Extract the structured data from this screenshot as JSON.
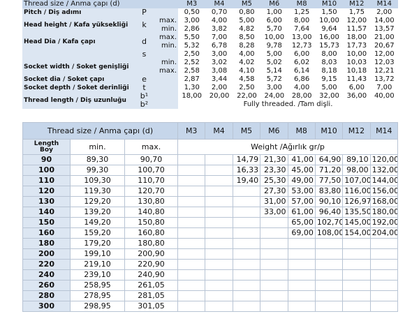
{
  "top": {
    "title": "Thread size / Anma çapı (d)",
    "sizes": [
      "M3",
      "M4",
      "M5",
      "M6",
      "M8",
      "M10",
      "M12",
      "M14"
    ],
    "groups": [
      {
        "label": "Pitch / Diş adımı",
        "symbol": "P",
        "lines": [
          {
            "values": [
              "0,50",
              "0,70",
              "0,80",
              "1,00",
              "1,25",
              "1,50",
              "1,75",
              "2,00"
            ]
          }
        ]
      },
      {
        "label": "Head height / Kafa yüksekliği",
        "symbol": "k",
        "lines": [
          {
            "limit": "max.",
            "values": [
              "3,00",
              "4,00",
              "5,00",
              "6,00",
              "8,00",
              "10,00",
              "12,00",
              "14,00"
            ]
          },
          {
            "limit": "min.",
            "values": [
              "2,86",
              "3,82",
              "4,82",
              "5,70",
              "7,64",
              "9,64",
              "11,57",
              "13,57"
            ]
          }
        ]
      },
      {
        "label": "Head Dia / Kafa çapı",
        "symbol": "d",
        "lines": [
          {
            "limit": "max.",
            "values": [
              "5,50",
              "7,00",
              "8,50",
              "10,00",
              "13,00",
              "16,00",
              "18,00",
              "21,00"
            ]
          },
          {
            "limit": "min.",
            "values": [
              "5,32",
              "6,78",
              "8,28",
              "9,78",
              "12,73",
              "15,73",
              "17,73",
              "20,67"
            ]
          }
        ]
      },
      {
        "symbol": "s",
        "lines": [
          {
            "values": [
              "2,50",
              "3,00",
              "4,00",
              "5,00",
              "6,00",
              "8,00",
              "10,00",
              "12,00"
            ]
          }
        ]
      },
      {
        "label": "Socket width / Soket genişliği",
        "lines": [
          {
            "limit": "min.",
            "values": [
              "2,52",
              "3,02",
              "4,02",
              "5,02",
              "6,02",
              "8,03",
              "10,03",
              "12,03"
            ]
          },
          {
            "limit": "max.",
            "values": [
              "2,58",
              "3,08",
              "4,10",
              "5,14",
              "6,14",
              "8,18",
              "10,18",
              "12,21"
            ]
          }
        ]
      },
      {
        "label": "Socket dia / Soket çapı",
        "symbol": "e",
        "lines": [
          {
            "values": [
              "2,87",
              "3,44",
              "4,58",
              "5,72",
              "6,86",
              "9,15",
              "11,43",
              "13,72"
            ]
          }
        ]
      },
      {
        "label": "Socket depth / Soket derinliği",
        "symbol": "t",
        "lines": [
          {
            "values": [
              "1,30",
              "2,00",
              "2,50",
              "3,00",
              "4,00",
              "5,00",
              "6,00",
              "7,00"
            ]
          }
        ]
      },
      {
        "label": "Thread length / Diş uzunluğu",
        "lines": [
          {
            "symbol": "b¹",
            "values": [
              "18,00",
              "20,00",
              "22,00",
              "24,00",
              "28,00",
              "32,00",
              "36,00",
              "40,00"
            ]
          },
          {
            "symbol": "b²",
            "note": "Fully threaded. /Tam dişli."
          }
        ]
      }
    ]
  },
  "bottom": {
    "title": "Thread size / Anma çapı (d)",
    "sizes": [
      "M3",
      "M4",
      "M5",
      "M6",
      "M8",
      "M10",
      "M12",
      "M14"
    ],
    "length_header": "Length\nBoy",
    "min_header": "min.",
    "max_header": "max.",
    "weight_header": "Weight /Ağırlık gr/p",
    "rows": [
      {
        "length": "90",
        "min": "89,30",
        "max": "90,70",
        "weights": [
          null,
          null,
          "14,79",
          "21,30",
          "41,00",
          "64,90",
          "89,10",
          "120,00"
        ]
      },
      {
        "length": "100",
        "min": "99,30",
        "max": "100,70",
        "weights": [
          null,
          null,
          "16,33",
          "23,30",
          "45,00",
          "71,20",
          "98,00",
          "132,00"
        ]
      },
      {
        "length": "110",
        "min": "109,30",
        "max": "110,70",
        "weights": [
          null,
          null,
          "19,40",
          "25,30",
          "49,00",
          "77,50",
          "107,00",
          "144,00"
        ]
      },
      {
        "length": "120",
        "min": "119,30",
        "max": "120,70",
        "weights": [
          null,
          null,
          null,
          "27,30",
          "53,00",
          "83,80",
          "116,00",
          "156,00"
        ]
      },
      {
        "length": "130",
        "min": "129,20",
        "max": "130,80",
        "weights": [
          null,
          null,
          null,
          "31,00",
          "57,00",
          "90,10",
          "126,97",
          "168,00"
        ]
      },
      {
        "length": "140",
        "min": "139,20",
        "max": "140,80",
        "weights": [
          null,
          null,
          null,
          "33,00",
          "61,00",
          "96,40",
          "135,50",
          "180,00"
        ]
      },
      {
        "length": "150",
        "min": "149,20",
        "max": "150,80",
        "weights": [
          null,
          null,
          null,
          null,
          "65,00",
          "102,70",
          "145,00",
          "192,00"
        ]
      },
      {
        "length": "160",
        "min": "159,20",
        "max": "160,80",
        "weights": [
          null,
          null,
          null,
          null,
          "69,00",
          "108,00",
          "154,00",
          "204,00"
        ]
      },
      {
        "length": "180",
        "min": "179,20",
        "max": "180,80"
      },
      {
        "length": "200",
        "min": "199,10",
        "max": "200,90"
      },
      {
        "length": "220",
        "min": "219,10",
        "max": "220,90"
      },
      {
        "length": "240",
        "min": "239,10",
        "max": "240,90"
      },
      {
        "length": "260",
        "min": "258,95",
        "max": "261,05"
      },
      {
        "length": "280",
        "min": "278,95",
        "max": "281,05"
      },
      {
        "length": "300",
        "min": "298,95",
        "max": "301,05"
      }
    ]
  }
}
